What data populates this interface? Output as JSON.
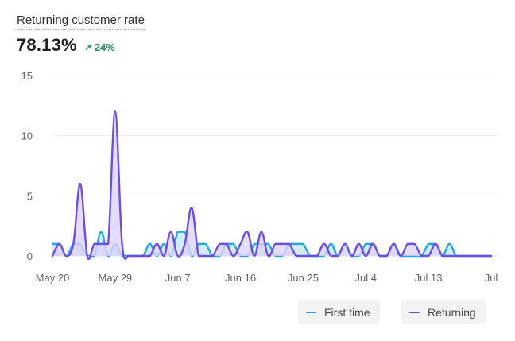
{
  "header": {
    "title": "Returning customer rate",
    "value": "78.13%",
    "delta": "24%",
    "delta_icon": "arrow-up-right-icon",
    "delta_color": "#2c8a5f"
  },
  "legend": {
    "first_time": "First time",
    "returning": "Returning"
  },
  "chart_data": {
    "type": "area",
    "title": "Returning customer rate",
    "ylim": [
      0,
      15
    ],
    "y_ticks": [
      "15",
      "10",
      "5",
      "0"
    ],
    "y_tick_values": [
      15,
      10,
      5,
      0
    ],
    "x_tick_labels": [
      "May 20",
      "May 29",
      "Jun 7",
      "Jun 16",
      "Jun 25",
      "Jul 4",
      "Jul 13",
      "Jul"
    ],
    "x_tick_index": [
      0,
      9,
      18,
      27,
      36,
      45,
      54,
      63
    ],
    "grid": true,
    "legend_position": "bottom-right",
    "x_count": 64,
    "series": [
      {
        "name": "First time",
        "color": "#2aa6d9",
        "values": [
          1,
          1,
          0,
          1,
          1,
          0,
          0,
          2,
          0,
          1,
          0,
          0,
          0,
          0,
          1,
          0,
          1,
          0,
          2,
          2,
          0,
          1,
          1,
          0,
          0,
          1,
          1,
          0,
          0,
          1,
          1,
          1,
          0,
          0,
          1,
          1,
          1,
          0,
          0,
          0,
          1,
          0,
          1,
          0,
          0,
          1,
          1,
          0,
          0,
          1,
          0,
          0,
          0,
          0,
          1,
          1,
          0,
          1,
          0,
          0,
          0,
          0,
          0,
          0
        ]
      },
      {
        "name": "Returning",
        "color": "#6e4fdb",
        "values": [
          0,
          1,
          0,
          1,
          6,
          0,
          1,
          1,
          1,
          12,
          1,
          0,
          0,
          0,
          0,
          1,
          0,
          2,
          0,
          1,
          4,
          0,
          0,
          0,
          1,
          1,
          0,
          1,
          2,
          0,
          2,
          0,
          1,
          1,
          1,
          0,
          0,
          0,
          0,
          1,
          0,
          0,
          1,
          0,
          1,
          0,
          1,
          0,
          0,
          1,
          0,
          1,
          1,
          0,
          0,
          1,
          0,
          0,
          0,
          0,
          0,
          0,
          0,
          0
        ]
      }
    ]
  }
}
